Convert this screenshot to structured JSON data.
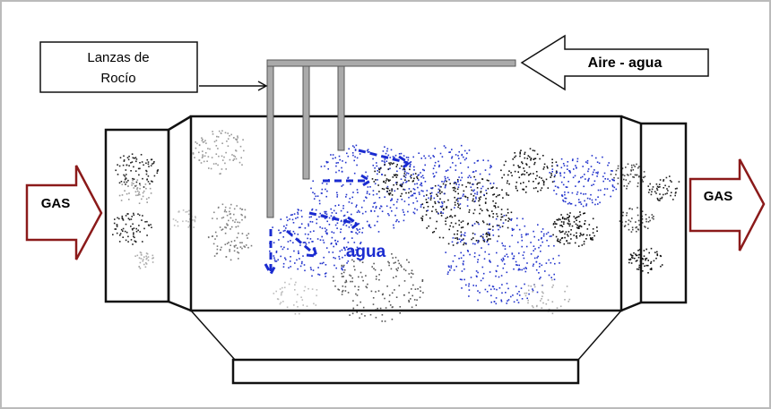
{
  "lance_label": [
    "Lanzas de",
    "Rocío"
  ],
  "air_water_label": "Aire - agua",
  "gas_in_label": "GAS",
  "gas_out_label": "GAS",
  "water_label": "agua"
}
